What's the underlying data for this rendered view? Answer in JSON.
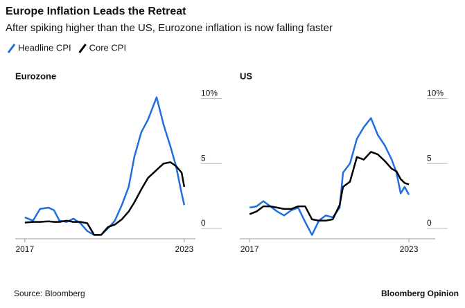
{
  "title": "Europe Inflation Leads the Retreat",
  "subtitle": "After spiking higher than the US, Eurozone inflation is now falling faster",
  "source": "Source: Bloomberg",
  "brand": "Bloomberg Opinion",
  "chart_data": [
    {
      "type": "line",
      "title": "Eurozone",
      "x": [
        2017,
        2017.31,
        2017.57,
        2017.89,
        2018.1,
        2018.3,
        2018.57,
        2018.83,
        2019.09,
        2019.35,
        2019.61,
        2019.87,
        2020.13,
        2020.39,
        2020.65,
        2020.91,
        2021.12,
        2021.38,
        2021.64,
        2021.96,
        2022.22,
        2022.48,
        2022.69,
        2022.9,
        2023
      ],
      "series": [
        {
          "name": "Headline CPI",
          "color": "#1f6fe0",
          "values": [
            0.85,
            0.6,
            1.5,
            1.6,
            1.4,
            0.6,
            0.5,
            0.75,
            0.4,
            -0.2,
            -0.5,
            -0.5,
            0.0,
            0.6,
            1.8,
            3.2,
            5.5,
            7.4,
            8.4,
            10.1,
            8.0,
            6.3,
            4.8,
            2.7,
            1.8
          ]
        },
        {
          "name": "Core CPI",
          "color": "#000000",
          "values": [
            0.45,
            0.5,
            0.5,
            0.55,
            0.5,
            0.5,
            0.6,
            0.5,
            0.5,
            0.4,
            -0.5,
            -0.5,
            0.1,
            0.3,
            0.7,
            1.3,
            2.0,
            3.0,
            3.9,
            4.5,
            5.0,
            5.1,
            4.8,
            4.3,
            3.2
          ]
        }
      ],
      "xlim": [
        2016.64,
        2023.42
      ],
      "xticks": [
        2017,
        2023
      ],
      "ylim": [
        -0.8,
        10.4
      ],
      "yticks": [
        0,
        5,
        {
          "value": 10,
          "label": "10%"
        }
      ]
    },
    {
      "type": "line",
      "title": "US",
      "x": [
        2017,
        2017.26,
        2017.52,
        2017.78,
        2018.04,
        2018.3,
        2018.57,
        2018.83,
        2019.09,
        2019.35,
        2019.61,
        2019.87,
        2020.13,
        2020.39,
        2020.52,
        2020.78,
        2021.04,
        2021.3,
        2021.57,
        2021.83,
        2022.09,
        2022.35,
        2022.53,
        2022.69,
        2022.84,
        2023
      ],
      "series": [
        {
          "name": "Headline CPI",
          "color": "#1f6fe0",
          "values": [
            1.6,
            1.7,
            2.1,
            1.7,
            1.3,
            1.0,
            1.4,
            1.6,
            0.5,
            -0.5,
            0.6,
            1.0,
            0.85,
            1.6,
            4.3,
            5.0,
            6.9,
            7.8,
            8.5,
            7.2,
            6.4,
            5.3,
            4.3,
            2.7,
            3.2,
            2.6
          ]
        },
        {
          "name": "Core CPI",
          "color": "#000000",
          "values": [
            1.1,
            1.3,
            1.7,
            1.7,
            1.6,
            1.5,
            1.5,
            1.7,
            1.7,
            0.7,
            0.6,
            0.6,
            0.7,
            1.8,
            3.2,
            3.6,
            5.5,
            5.3,
            5.9,
            5.7,
            5.2,
            4.6,
            4.4,
            3.8,
            3.5,
            3.4
          ]
        }
      ],
      "xlim": [
        2016.63,
        2023.99
      ],
      "xticks": [
        2017,
        2023
      ],
      "ylim": [
        -0.8,
        10.4
      ],
      "yticks": [
        0,
        5,
        {
          "value": 10,
          "label": "10%"
        }
      ]
    }
  ]
}
